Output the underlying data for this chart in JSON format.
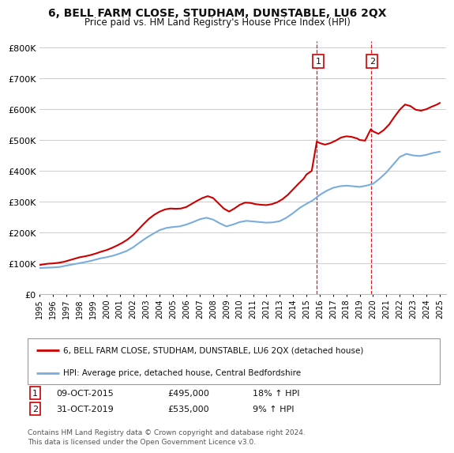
{
  "title": "6, BELL FARM CLOSE, STUDHAM, DUNSTABLE, LU6 2QX",
  "subtitle": "Price paid vs. HM Land Registry's House Price Index (HPI)",
  "yticks": [
    0,
    100000,
    200000,
    300000,
    400000,
    500000,
    600000,
    700000,
    800000
  ],
  "ytick_labels": [
    "£0",
    "£100K",
    "£200K",
    "£300K",
    "£400K",
    "£500K",
    "£600K",
    "£700K",
    "£800K"
  ],
  "ylim": [
    0,
    820000
  ],
  "xlim_start": 1995.0,
  "xlim_end": 2025.5,
  "background_color": "#ffffff",
  "grid_color": "#cccccc",
  "hpi_color": "#7aaddc",
  "price_color": "#cc0000",
  "shade_color": "#ddeeff",
  "transaction1": {
    "year": 2015.78,
    "price": 495000,
    "label": "1",
    "date": "09-OCT-2015",
    "hpi_pct": "18%"
  },
  "transaction2": {
    "year": 2019.83,
    "price": 535000,
    "label": "2",
    "date": "31-OCT-2019",
    "hpi_pct": "9%"
  },
  "legend_line1": "6, BELL FARM CLOSE, STUDHAM, DUNSTABLE, LU6 2QX (detached house)",
  "legend_line2": "HPI: Average price, detached house, Central Bedfordshire",
  "footnote": "Contains HM Land Registry data © Crown copyright and database right 2024.\nThis data is licensed under the Open Government Licence v3.0.",
  "hpi_data": [
    [
      1995.0,
      85000
    ],
    [
      1995.5,
      86000
    ],
    [
      1996.0,
      87000
    ],
    [
      1996.5,
      88500
    ],
    [
      1997.0,
      93000
    ],
    [
      1997.5,
      97000
    ],
    [
      1998.0,
      101000
    ],
    [
      1998.5,
      105000
    ],
    [
      1999.0,
      110000
    ],
    [
      1999.5,
      116000
    ],
    [
      2000.0,
      120000
    ],
    [
      2000.5,
      125000
    ],
    [
      2001.0,
      132000
    ],
    [
      2001.5,
      140000
    ],
    [
      2002.0,
      152000
    ],
    [
      2002.5,
      168000
    ],
    [
      2003.0,
      183000
    ],
    [
      2003.5,
      196000
    ],
    [
      2004.0,
      208000
    ],
    [
      2004.5,
      215000
    ],
    [
      2005.0,
      218000
    ],
    [
      2005.5,
      220000
    ],
    [
      2006.0,
      226000
    ],
    [
      2006.5,
      234000
    ],
    [
      2007.0,
      243000
    ],
    [
      2007.5,
      248000
    ],
    [
      2008.0,
      242000
    ],
    [
      2008.5,
      230000
    ],
    [
      2009.0,
      220000
    ],
    [
      2009.5,
      226000
    ],
    [
      2010.0,
      234000
    ],
    [
      2010.5,
      238000
    ],
    [
      2011.0,
      236000
    ],
    [
      2011.5,
      234000
    ],
    [
      2012.0,
      232000
    ],
    [
      2012.5,
      233000
    ],
    [
      2013.0,
      237000
    ],
    [
      2013.5,
      248000
    ],
    [
      2014.0,
      263000
    ],
    [
      2014.5,
      280000
    ],
    [
      2015.0,
      293000
    ],
    [
      2015.5,
      305000
    ],
    [
      2016.0,
      322000
    ],
    [
      2016.5,
      335000
    ],
    [
      2017.0,
      345000
    ],
    [
      2017.5,
      350000
    ],
    [
      2018.0,
      352000
    ],
    [
      2018.5,
      350000
    ],
    [
      2019.0,
      348000
    ],
    [
      2019.5,
      352000
    ],
    [
      2020.0,
      358000
    ],
    [
      2020.5,
      375000
    ],
    [
      2021.0,
      395000
    ],
    [
      2021.5,
      420000
    ],
    [
      2022.0,
      445000
    ],
    [
      2022.5,
      455000
    ],
    [
      2023.0,
      450000
    ],
    [
      2023.5,
      448000
    ],
    [
      2024.0,
      452000
    ],
    [
      2024.5,
      458000
    ],
    [
      2025.0,
      462000
    ]
  ],
  "price_data": [
    [
      1995.0,
      95000
    ],
    [
      1995.3,
      97000
    ],
    [
      1995.6,
      99000
    ],
    [
      1996.0,
      100000
    ],
    [
      1996.4,
      102000
    ],
    [
      1996.8,
      105000
    ],
    [
      1997.2,
      110000
    ],
    [
      1997.6,
      115000
    ],
    [
      1998.0,
      120000
    ],
    [
      1998.4,
      123000
    ],
    [
      1998.8,
      127000
    ],
    [
      1999.2,
      132000
    ],
    [
      1999.6,
      138000
    ],
    [
      2000.0,
      143000
    ],
    [
      2000.4,
      150000
    ],
    [
      2000.8,
      158000
    ],
    [
      2001.2,
      167000
    ],
    [
      2001.6,
      178000
    ],
    [
      2002.0,
      192000
    ],
    [
      2002.4,
      210000
    ],
    [
      2002.8,
      228000
    ],
    [
      2003.2,
      245000
    ],
    [
      2003.6,
      258000
    ],
    [
      2004.0,
      268000
    ],
    [
      2004.4,
      275000
    ],
    [
      2004.8,
      278000
    ],
    [
      2005.2,
      277000
    ],
    [
      2005.6,
      278000
    ],
    [
      2006.0,
      283000
    ],
    [
      2006.4,
      293000
    ],
    [
      2006.8,
      303000
    ],
    [
      2007.2,
      312000
    ],
    [
      2007.6,
      318000
    ],
    [
      2008.0,
      312000
    ],
    [
      2008.4,
      295000
    ],
    [
      2008.8,
      278000
    ],
    [
      2009.2,
      268000
    ],
    [
      2009.6,
      278000
    ],
    [
      2010.0,
      290000
    ],
    [
      2010.4,
      297000
    ],
    [
      2010.8,
      296000
    ],
    [
      2011.2,
      292000
    ],
    [
      2011.6,
      290000
    ],
    [
      2012.0,
      289000
    ],
    [
      2012.4,
      292000
    ],
    [
      2012.8,
      298000
    ],
    [
      2013.2,
      308000
    ],
    [
      2013.6,
      322000
    ],
    [
      2014.0,
      340000
    ],
    [
      2014.4,
      358000
    ],
    [
      2014.8,
      375000
    ],
    [
      2015.0,
      388000
    ],
    [
      2015.4,
      400000
    ],
    [
      2015.78,
      495000
    ],
    [
      2016.0,
      490000
    ],
    [
      2016.4,
      485000
    ],
    [
      2016.8,
      490000
    ],
    [
      2017.2,
      498000
    ],
    [
      2017.6,
      508000
    ],
    [
      2018.0,
      512000
    ],
    [
      2018.4,
      510000
    ],
    [
      2018.8,
      505000
    ],
    [
      2019.0,
      500000
    ],
    [
      2019.4,
      498000
    ],
    [
      2019.83,
      535000
    ],
    [
      2020.0,
      528000
    ],
    [
      2020.4,
      520000
    ],
    [
      2020.8,
      532000
    ],
    [
      2021.2,
      550000
    ],
    [
      2021.6,
      575000
    ],
    [
      2022.0,
      598000
    ],
    [
      2022.4,
      615000
    ],
    [
      2022.8,
      610000
    ],
    [
      2023.2,
      598000
    ],
    [
      2023.6,
      595000
    ],
    [
      2024.0,
      600000
    ],
    [
      2024.4,
      608000
    ],
    [
      2024.8,
      615000
    ],
    [
      2025.0,
      620000
    ]
  ]
}
